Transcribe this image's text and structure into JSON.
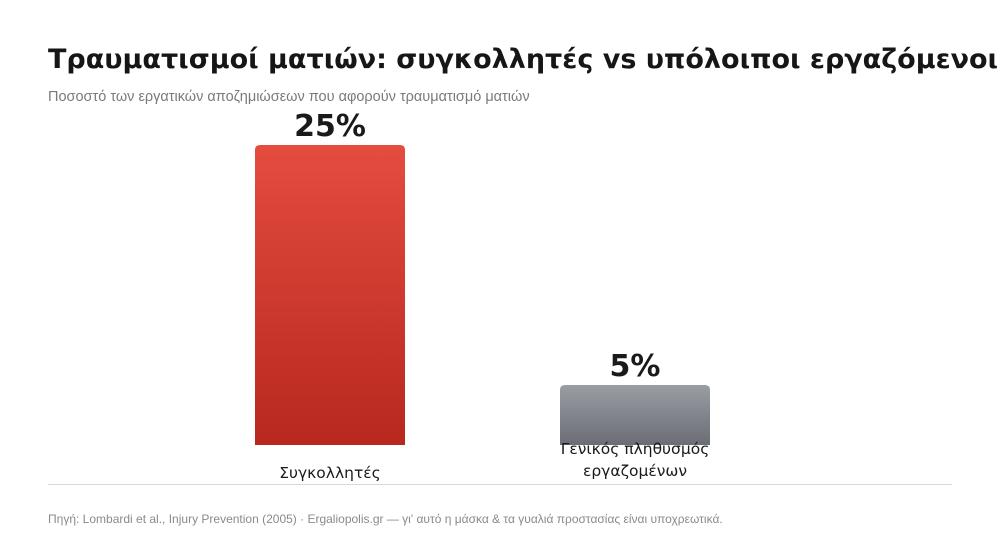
{
  "header": {
    "title": "Τραυματισμοί ματιών: συγκολλητές vs υπόλοιποι εργαζόμενοι",
    "subtitle": "Ποσοστό των εργατικών αποζημιώσεων που αφορούν τραυματισμό ματιών"
  },
  "footer": {
    "source": "Πηγή: Lombardi et al., Injury Prevention (2005) · Ergaliopolis.gr — γι' αυτό η μάσκα & τα γυαλιά προστασίας είναι υποχρεωτικά."
  },
  "chart_data": {
    "type": "bar",
    "title": "Τραυματισμοί ματιών: συγκολλητές vs υπόλοιποι εργαζόμενοι",
    "subtitle": "Ποσοστό των εργατικών αποζημιώσεων που αφορούν τραυματισμό ματιών",
    "xlabel": "",
    "ylabel": "",
    "unit": "%",
    "ylim": [
      0,
      25
    ],
    "grid": false,
    "legend": "none",
    "categories": [
      [
        "Συγκολλητές"
      ],
      [
        "Γενικός πληθυσμός",
        "εργαζομένων"
      ]
    ],
    "values": [
      25,
      5
    ],
    "value_labels": [
      "25%",
      "5%"
    ],
    "colors": [
      {
        "top": "#e44c3f",
        "bottom": "#b8281e"
      },
      {
        "top": "#9a9ea4",
        "bottom": "#6a6e74"
      }
    ]
  }
}
